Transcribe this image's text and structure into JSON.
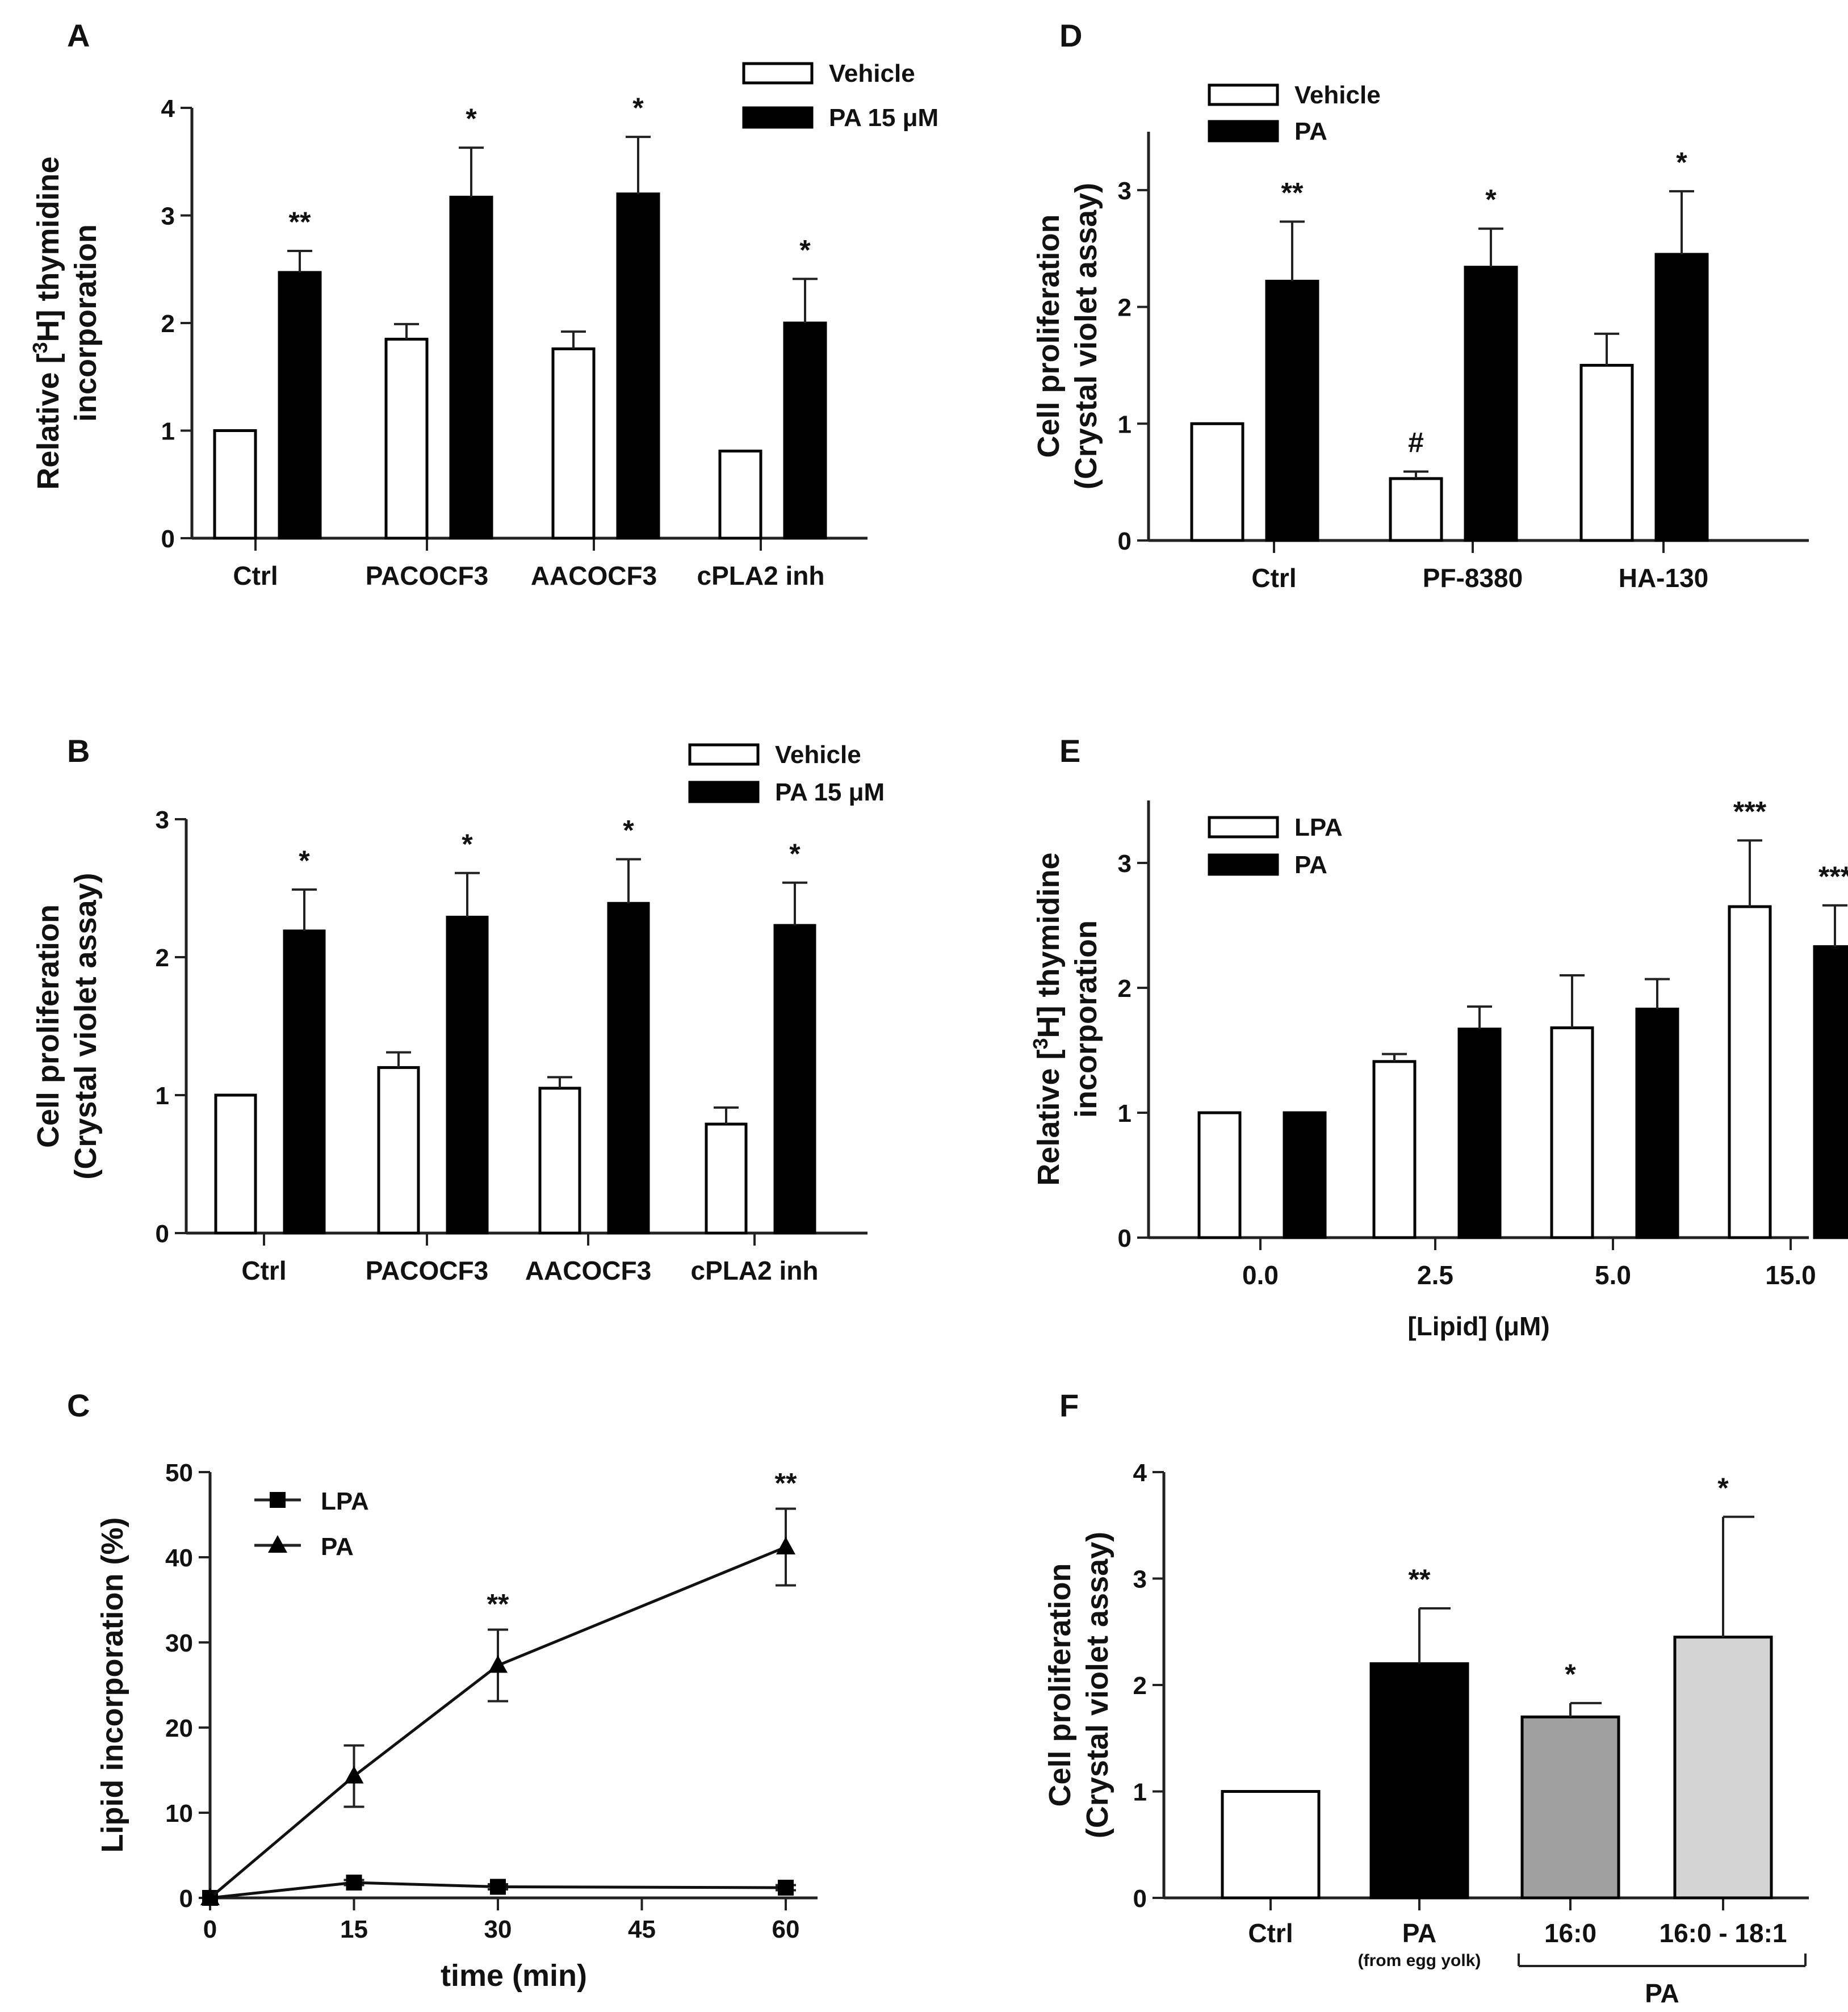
{
  "chart_data": [
    {
      "panel": "A",
      "type": "bar",
      "ylabel_lines": [
        "Relative [3H] thymidine",
        "incorporation"
      ],
      "xlabel": "",
      "ylim": [
        0,
        4
      ],
      "yticks": [
        "0",
        "1",
        "2",
        "3",
        "4"
      ],
      "categories": [
        "Ctrl",
        "PACOCF3",
        "AACOCF3",
        "cPLA2 inh"
      ],
      "legend": [
        "Vehicle",
        "PA 15 μM"
      ],
      "series": [
        {
          "name": "Vehicle",
          "color": "#ffffff",
          "values": [
            1.0,
            1.85,
            1.76,
            0.81
          ],
          "errors": [
            0,
            0.14,
            0.16,
            0
          ],
          "annotations": [
            "",
            "",
            "",
            ""
          ]
        },
        {
          "name": "PA 15 μM",
          "color": "#000000",
          "values": [
            2.47,
            3.17,
            3.2,
            2.0
          ],
          "errors": [
            0.2,
            0.46,
            0.53,
            0.41
          ],
          "annotations": [
            "**",
            "*",
            "*",
            "*"
          ]
        }
      ]
    },
    {
      "panel": "B",
      "type": "bar",
      "ylabel_lines": [
        "Cell proliferation",
        "(Crystal violet assay)"
      ],
      "xlabel": "",
      "ylim": [
        0,
        3
      ],
      "yticks": [
        "0",
        "1",
        "2",
        "3"
      ],
      "categories": [
        "Ctrl",
        "PACOCF3",
        "AACOCF3",
        "cPLA2 inh"
      ],
      "legend": [
        "Vehicle",
        "PA 15 μM"
      ],
      "series": [
        {
          "name": "Vehicle",
          "color": "#ffffff",
          "values": [
            1.0,
            1.2,
            1.05,
            0.79
          ],
          "errors": [
            0,
            0.11,
            0.08,
            0.12
          ],
          "annotations": [
            "",
            "",
            "",
            ""
          ]
        },
        {
          "name": "PA 15 μM",
          "color": "#000000",
          "values": [
            2.19,
            2.29,
            2.39,
            2.23
          ],
          "errors": [
            0.3,
            0.32,
            0.32,
            0.31
          ],
          "annotations": [
            "*",
            "*",
            "*",
            "*"
          ]
        }
      ]
    },
    {
      "panel": "C",
      "type": "line",
      "ylabel_lines": [
        "Lipid incorporation (%)"
      ],
      "xlabel": "time (min)",
      "xlim": [
        0,
        65
      ],
      "ylim": [
        0,
        50
      ],
      "xticks": [
        "0",
        "15",
        "30",
        "45",
        "60"
      ],
      "yticks": [
        "0",
        "10",
        "20",
        "30",
        "40",
        "50"
      ],
      "legend": [
        "LPA",
        "PA"
      ],
      "series": [
        {
          "name": "LPA",
          "marker": "square",
          "x": [
            0,
            15,
            30,
            60
          ],
          "y": [
            0,
            1.8,
            1.3,
            1.2
          ],
          "errors": [
            0,
            0.3,
            0.3,
            0.3
          ],
          "annotations": [
            "",
            "",
            "",
            ""
          ]
        },
        {
          "name": "PA",
          "marker": "triangle",
          "x": [
            0,
            15,
            30,
            60
          ],
          "y": [
            0,
            14.3,
            27.3,
            41.2
          ],
          "errors": [
            0,
            3.6,
            4.2,
            4.5
          ],
          "annotations": [
            "",
            "",
            "**",
            "**"
          ]
        }
      ]
    },
    {
      "panel": "D",
      "type": "bar",
      "ylabel_lines": [
        "Cell proliferation",
        "(Crystal violet assay)"
      ],
      "xlabel": "",
      "ylim": [
        0,
        3.5
      ],
      "yticks": [
        "0",
        "1",
        "2",
        "3"
      ],
      "categories": [
        "Ctrl",
        "PF-8380",
        "HA-130"
      ],
      "legend": [
        "Vehicle",
        "PA"
      ],
      "series": [
        {
          "name": "Vehicle",
          "color": "#ffffff",
          "values": [
            1.0,
            0.53,
            1.5
          ],
          "errors": [
            0,
            0.06,
            0.27
          ],
          "annotations": [
            "",
            "#",
            ""
          ]
        },
        {
          "name": "PA",
          "color": "#000000",
          "values": [
            2.22,
            2.34,
            2.45
          ],
          "errors": [
            0.51,
            0.33,
            0.54
          ],
          "annotations": [
            "**",
            "*",
            "*"
          ]
        }
      ]
    },
    {
      "panel": "E",
      "type": "bar",
      "ylabel_lines": [
        "Relative [3H] thymidine",
        "incorporation"
      ],
      "xlabel": "[Lipid] (μM)",
      "ylim": [
        0,
        3.5
      ],
      "yticks": [
        "0",
        "1",
        "2",
        "3"
      ],
      "categories": [
        "0.0",
        "2.5",
        "5.0",
        "15.0"
      ],
      "legend": [
        "LPA",
        "PA"
      ],
      "series": [
        {
          "name": "LPA",
          "color": "#ffffff",
          "values": [
            1.0,
            1.41,
            1.68,
            2.65
          ],
          "errors": [
            0,
            0.06,
            0.42,
            0.53
          ],
          "annotations": [
            "",
            "",
            "",
            "***"
          ]
        },
        {
          "name": "PA",
          "color": "#000000",
          "values": [
            1.0,
            1.67,
            1.83,
            2.33
          ],
          "errors": [
            0,
            0.18,
            0.24,
            0.33
          ],
          "annotations": [
            "",
            "",
            "",
            "***"
          ]
        }
      ]
    },
    {
      "panel": "F",
      "type": "bar",
      "ylabel_lines": [
        "Cell proliferation",
        "(Crystal violet assay)"
      ],
      "xlabel": "",
      "ylim": [
        0,
        4
      ],
      "yticks": [
        "0",
        "1",
        "2",
        "3",
        "4"
      ],
      "categories": [
        "Ctrl",
        "PA",
        "16:0",
        "16:0 - 18:1"
      ],
      "category_sublabels": [
        "",
        "(from egg yolk)",
        "",
        ""
      ],
      "group_label": "PA",
      "values": [
        1.0,
        2.2,
        1.7,
        2.45
      ],
      "errors": [
        0,
        0.52,
        0.13,
        1.13
      ],
      "colors": [
        "#ffffff",
        "#000000",
        "#a0a0a0",
        "#d4d4d4"
      ],
      "annotations": [
        "",
        "**",
        "*",
        "*"
      ]
    }
  ]
}
